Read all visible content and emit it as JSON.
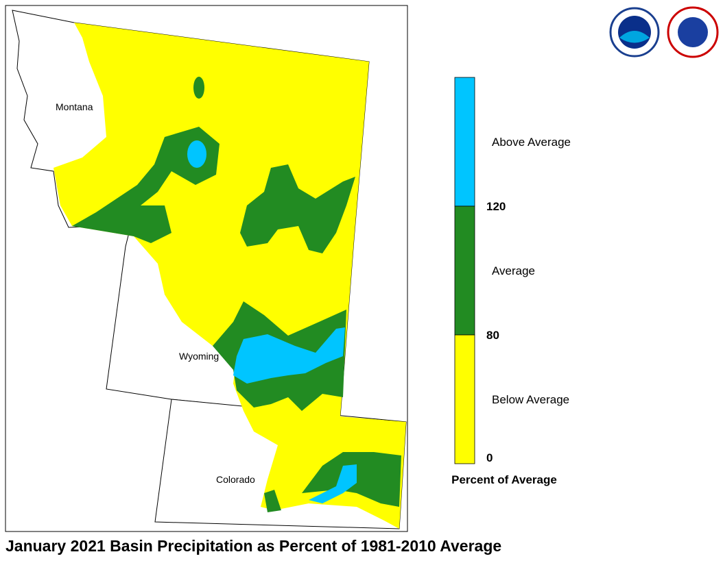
{
  "title": "January 2021 Basin Precipitation as Percent of 1981-2010 Average",
  "map": {
    "states": [
      "Montana",
      "Wyoming",
      "Colorado"
    ]
  },
  "legend": {
    "title": "Percent of Average",
    "classes": [
      {
        "label": "Above Average",
        "color": "#00c5ff"
      },
      {
        "label": "Average",
        "color": "#228b22"
      },
      {
        "label": "Below Average",
        "color": "#ffff00"
      }
    ],
    "ticks": [
      120,
      80,
      0
    ]
  }
}
